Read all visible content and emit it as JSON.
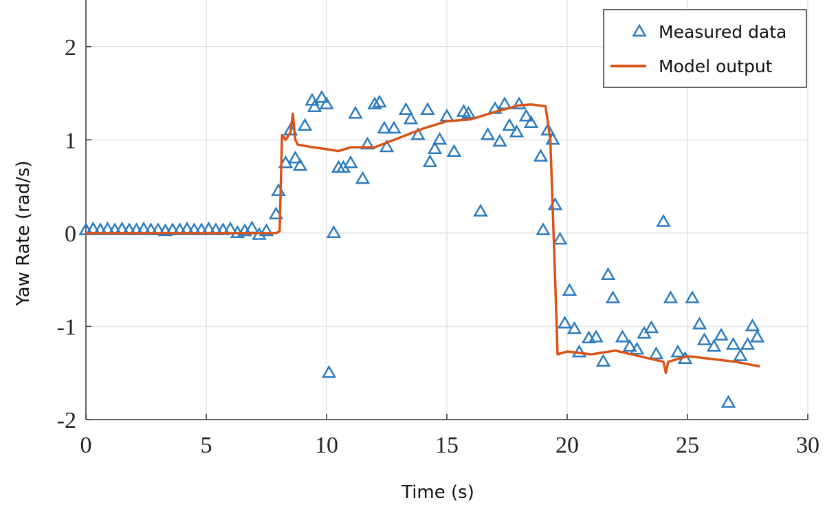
{
  "chart_data": {
    "type": "scatter_line",
    "x_label": "Time (s)",
    "y_label": "Yaw Rate (rad/s)",
    "xlim": [
      0,
      30
    ],
    "xticks": [
      0,
      5,
      10,
      15,
      20,
      25,
      30
    ],
    "ylim": [
      -2,
      2.5
    ],
    "yticks": [
      -2,
      -1,
      0,
      1,
      2
    ],
    "grid": true,
    "legend": "upper right",
    "series": [
      {
        "name": "Measured data",
        "type": "scatter",
        "color": "#2a7bc0",
        "x": [
          0,
          0.3,
          0.6,
          0.9,
          1.2,
          1.5,
          1.8,
          2.1,
          2.4,
          2.7,
          3.0,
          3.3,
          3.6,
          3.9,
          4.2,
          4.5,
          4.8,
          5.1,
          5.4,
          5.7,
          6.0,
          6.3,
          6.6,
          6.9,
          7.2,
          7.5,
          7.9,
          8.0,
          8.3,
          8.5,
          8.7,
          8.9,
          9.1,
          9.4,
          9.5,
          9.8,
          10.0,
          10.1,
          10.3,
          10.5,
          10.7,
          11.0,
          11.2,
          11.5,
          11.7,
          12.0,
          12.2,
          12.4,
          12.5,
          12.8,
          13.3,
          13.5,
          13.8,
          14.2,
          14.3,
          14.5,
          14.7,
          15.0,
          15.3,
          15.7,
          15.9,
          16.4,
          16.7,
          17.0,
          17.2,
          17.4,
          17.6,
          17.9,
          18.0,
          18.3,
          18.5,
          18.9,
          19.0,
          19.2,
          19.4,
          19.5,
          19.7,
          19.9,
          20.1,
          20.3,
          20.5,
          20.9,
          21.2,
          21.5,
          21.7,
          21.9,
          22.3,
          22.6,
          22.9,
          23.2,
          23.5,
          23.7,
          24.0,
          24.3,
          24.6,
          24.9,
          25.2,
          25.5,
          25.7,
          26.1,
          26.4,
          26.7,
          26.9,
          27.2,
          27.5,
          27.7,
          27.9
        ],
        "y": [
          0.03,
          0.04,
          0.03,
          0.04,
          0.03,
          0.04,
          0.03,
          0.03,
          0.04,
          0.03,
          0.03,
          0.02,
          0.03,
          0.03,
          0.04,
          0.03,
          0.03,
          0.04,
          0.03,
          0.03,
          0.04,
          0.0,
          0.02,
          0.05,
          -0.02,
          0.02,
          0.2,
          0.45,
          0.75,
          1.1,
          0.8,
          0.72,
          1.15,
          1.42,
          1.35,
          1.45,
          1.38,
          -1.5,
          0.0,
          0.7,
          0.7,
          0.75,
          1.28,
          0.58,
          0.95,
          1.38,
          1.4,
          1.12,
          0.92,
          1.12,
          1.32,
          1.22,
          1.05,
          1.32,
          0.76,
          0.9,
          1.0,
          1.25,
          0.87,
          1.3,
          1.28,
          0.23,
          1.05,
          1.33,
          0.98,
          1.38,
          1.15,
          1.08,
          1.38,
          1.25,
          1.18,
          0.82,
          0.03,
          1.1,
          1.0,
          0.3,
          -0.07,
          -0.97,
          -0.62,
          -1.03,
          -1.28,
          -1.13,
          -1.12,
          -1.38,
          -0.45,
          -0.7,
          -1.12,
          -1.22,
          -1.25,
          -1.08,
          -1.02,
          -1.3,
          0.12,
          -0.7,
          -1.28,
          -1.35,
          -0.7,
          -0.98,
          -1.15,
          -1.22,
          -1.1,
          -1.82,
          -1.2,
          -1.32,
          -1.2,
          -1.0,
          -1.12
        ]
      },
      {
        "name": "Model output",
        "type": "line",
        "color": "#d95319",
        "x": [
          0,
          7.9,
          8.05,
          8.15,
          8.3,
          8.5,
          8.6,
          8.7,
          8.8,
          9.2,
          10,
          10.5,
          11,
          12,
          13,
          14,
          15,
          16,
          17,
          18,
          18.5,
          19.1,
          19.3,
          19.5,
          19.6,
          20,
          21,
          22,
          23,
          24,
          24.1,
          24.2,
          25,
          26,
          27,
          28
        ],
        "y": [
          0,
          0,
          0.02,
          1.05,
          1.0,
          1.08,
          1.28,
          1.0,
          0.95,
          0.93,
          0.9,
          0.88,
          0.92,
          0.92,
          1.02,
          1.12,
          1.2,
          1.22,
          1.3,
          1.37,
          1.38,
          1.36,
          1.0,
          -0.5,
          -1.3,
          -1.27,
          -1.3,
          -1.26,
          -1.32,
          -1.38,
          -1.5,
          -1.38,
          -1.32,
          -1.35,
          -1.38,
          -1.43
        ]
      }
    ]
  }
}
